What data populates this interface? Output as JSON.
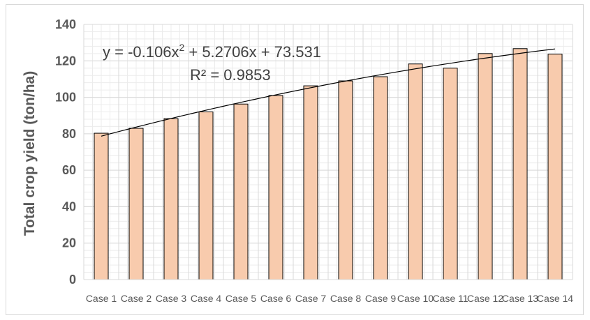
{
  "chart_data": {
    "type": "bar",
    "title": "",
    "xlabel": "",
    "ylabel": "Total crop yield (ton/ha)",
    "ylim": [
      0,
      140
    ],
    "yticks": [
      0,
      20,
      40,
      60,
      80,
      100,
      120,
      140
    ],
    "grid": true,
    "legend": "none",
    "categories": [
      "Case 1",
      "Case 2",
      "Case 3",
      "Case 4",
      "Case 5",
      "Case 6",
      "Case 7",
      "Case 8",
      "Case 9",
      "Case 10",
      "Case 11",
      "Case 12",
      "Case 13",
      "Case 14"
    ],
    "values": [
      80.3,
      83.0,
      88.3,
      92.0,
      96.3,
      101.0,
      106.3,
      109.0,
      111.3,
      118.3,
      116.0,
      124.0,
      126.7,
      123.7
    ],
    "bar_color": "#f8cbad",
    "bar_edge_color": "#000000",
    "trendline": {
      "type": "polynomial",
      "coefficients": [
        -0.106,
        5.2706,
        73.531
      ],
      "equation_label": "y = -0.106x² + 5.2706x + 73.531",
      "r2_label": "R² = 0.9853"
    }
  }
}
